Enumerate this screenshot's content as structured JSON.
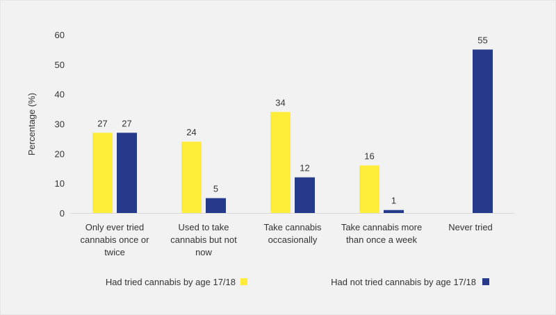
{
  "chart_data": {
    "type": "bar",
    "title": "",
    "xlabel": "",
    "ylabel": "Percentage (%)",
    "ylim": [
      0,
      60
    ],
    "yticks": [
      "0",
      "10",
      "20",
      "30",
      "40",
      "50",
      "60"
    ],
    "grid": false,
    "legend_position": "bottom",
    "categories": [
      [
        "Only ever tried",
        "cannabis once or",
        "twice"
      ],
      [
        "Used to take",
        "cannabis but not",
        "now"
      ],
      [
        "Take cannabis",
        "occasionally"
      ],
      [
        "Take cannabis more",
        "than once a week"
      ],
      [
        "Never tried"
      ]
    ],
    "series": [
      {
        "name": "Had tried cannabis by age 17/18",
        "color": "#ffed3a",
        "values": [
          27,
          24,
          34,
          16,
          null
        ]
      },
      {
        "name": "Had not tried cannabis by age 17/18",
        "color": "#253a8a",
        "values": [
          27,
          5,
          12,
          1,
          55
        ]
      }
    ]
  }
}
